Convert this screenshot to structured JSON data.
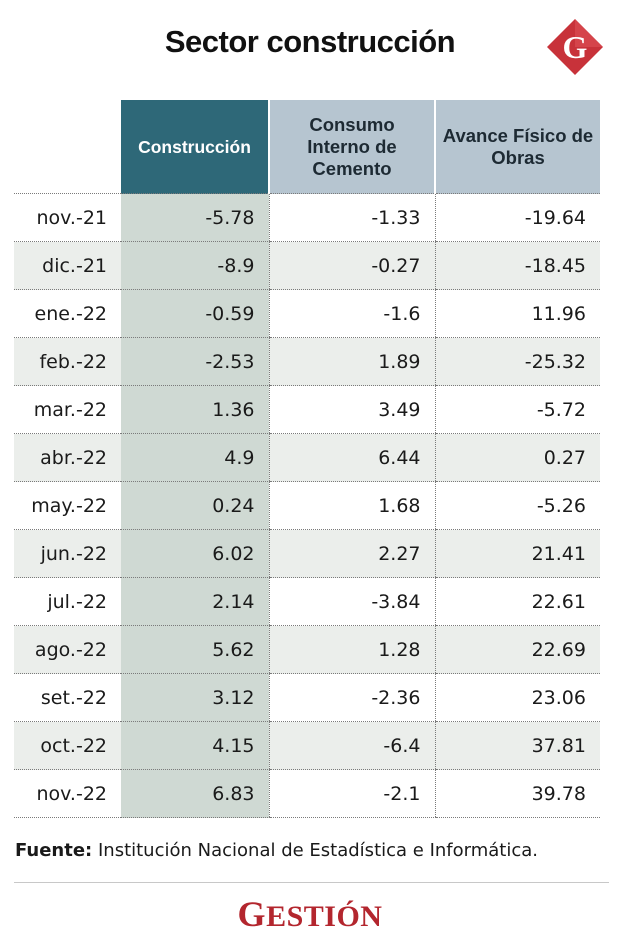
{
  "title": "Sector construcción",
  "logo": {
    "letter": "G",
    "color": "#c8323a"
  },
  "table": {
    "headers": [
      "Construcción",
      "Consumo Interno de Cemento",
      "Avance Físico de Obras"
    ]
  },
  "chart_data": {
    "type": "table",
    "title": "Sector construcción",
    "columns": [
      "Construcción",
      "Consumo Interno de Cemento",
      "Avance Físico de Obras"
    ],
    "rows": [
      {
        "month": "nov.-21",
        "values": [
          "-5.78",
          "-1.33",
          "-19.64"
        ]
      },
      {
        "month": "dic.-21",
        "values": [
          "-8.9",
          "-0.27",
          "-18.45"
        ]
      },
      {
        "month": "ene.-22",
        "values": [
          "-0.59",
          "-1.6",
          "11.96"
        ]
      },
      {
        "month": "feb.-22",
        "values": [
          "-2.53",
          "1.89",
          "-25.32"
        ]
      },
      {
        "month": "mar.-22",
        "values": [
          "1.36",
          "3.49",
          "-5.72"
        ]
      },
      {
        "month": "abr.-22",
        "values": [
          "4.9",
          "6.44",
          "0.27"
        ]
      },
      {
        "month": "may.-22",
        "values": [
          "0.24",
          "1.68",
          "-5.26"
        ]
      },
      {
        "month": "jun.-22",
        "values": [
          "6.02",
          "2.27",
          "21.41"
        ]
      },
      {
        "month": "jul.-22",
        "values": [
          "2.14",
          "-3.84",
          "22.61"
        ]
      },
      {
        "month": "ago.-22",
        "values": [
          "5.62",
          "1.28",
          "22.69"
        ]
      },
      {
        "month": "set.-22",
        "values": [
          "3.12",
          "-2.36",
          "23.06"
        ]
      },
      {
        "month": "oct.-22",
        "values": [
          "4.15",
          "-6.4",
          "37.81"
        ]
      },
      {
        "month": "nov.-22",
        "values": [
          "6.83",
          "-2.1",
          "39.78"
        ]
      }
    ]
  },
  "source": {
    "label": "Fuente:",
    "text": " Institución Nacional de Estadística e Informática."
  },
  "brand": {
    "first": "G",
    "rest": "ESTIÓN",
    "color": "#b3262e"
  }
}
